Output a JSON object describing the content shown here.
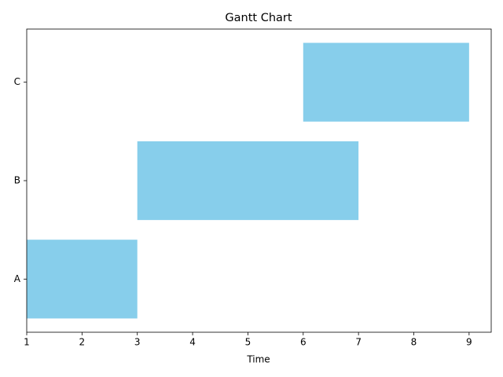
{
  "chart_data": {
    "type": "gantt",
    "title": "Gantt Chart",
    "x_label": "Time",
    "categories": [
      "A",
      "B",
      "C"
    ],
    "starts": [
      1,
      3,
      6
    ],
    "ends": [
      3,
      7,
      9
    ],
    "color": "#87ceeb",
    "xlim": [
      1,
      9.4
    ],
    "xticks": [
      1,
      2,
      3,
      4,
      5,
      6,
      7,
      8,
      9
    ]
  }
}
